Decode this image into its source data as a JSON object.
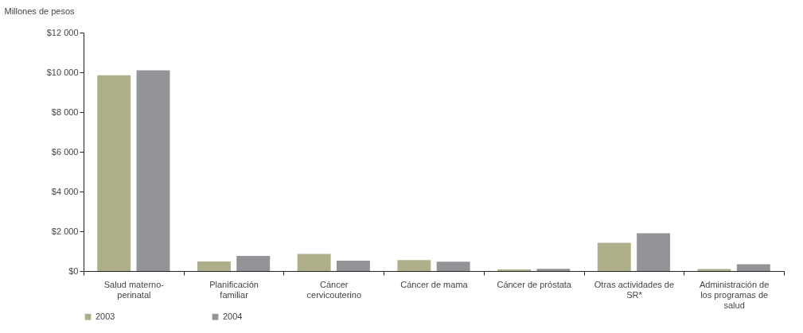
{
  "chart_data": {
    "type": "bar",
    "ylabel": "Millones de pesos",
    "categories": [
      "Salud materno-perinatal",
      "Planificación familiar",
      "Cáncer cervicouterino",
      "Cáncer de mama",
      "Cáncer de próstata",
      "Otras actividades de SR*",
      "Administración de los programas de salud"
    ],
    "series": [
      {
        "name": "2003",
        "color": "#aeae8a",
        "values": [
          9850,
          480,
          860,
          550,
          80,
          1420,
          100
        ]
      },
      {
        "name": "2004",
        "color": "#939497",
        "values": [
          10100,
          760,
          520,
          470,
          110,
          1900,
          340
        ]
      }
    ],
    "ylim": [
      0,
      12000
    ],
    "yticks": [
      {
        "value": 0,
        "label": "$0"
      },
      {
        "value": 2000,
        "label": "$2 000"
      },
      {
        "value": 4000,
        "label": "$4 000"
      },
      {
        "value": 6000,
        "label": "$6 000"
      },
      {
        "value": 8000,
        "label": "$8 000"
      },
      {
        "value": 10000,
        "label": "$10 000"
      },
      {
        "value": 12000,
        "label": "$12 000"
      }
    ],
    "grid": false,
    "legend": "bottom"
  }
}
